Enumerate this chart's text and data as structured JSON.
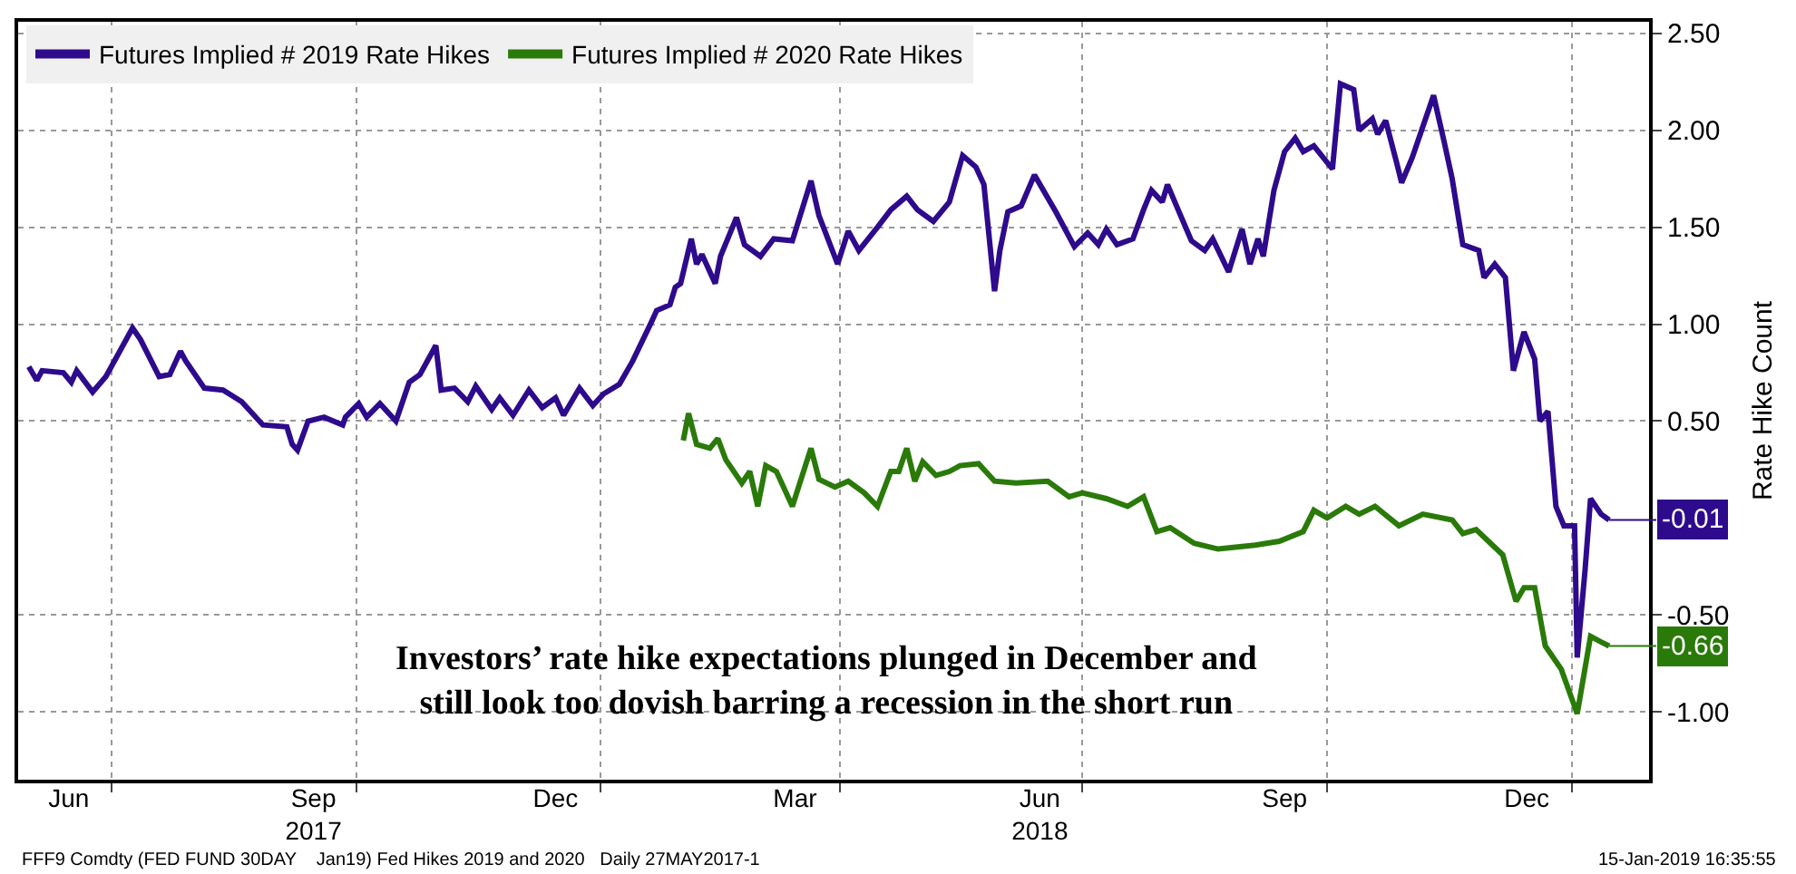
{
  "chart_data": {
    "type": "line",
    "ylabel": "Rate Hike Count",
    "annotations": [
      "Investors’ rate hike expectations plunged in December and\nstill look too dovish barring a recession in the short run",
      "FFF9 Comdty (FED FUND 30DAY    Jan19) Fed Hikes 2019 and 2020   Daily 27MAY2017-1",
      "15-Jan-2019 16:35:55",
      {
        "text": "-0.01",
        "x": "2019-01-15",
        "y": -0.01
      },
      {
        "text": "-0.66",
        "x": "2019-01-15",
        "y": -0.66
      }
    ],
    "series": [
      {
        "name": "Futures Implied # 2019 Rate Hikes",
        "color": "#2e0a8c",
        "x": [
          "2017-05-31",
          "2017-06-03",
          "2017-06-05",
          "2017-06-13",
          "2017-06-16",
          "2017-06-18",
          "2017-06-24",
          "2017-06-29",
          "2017-07-09",
          "2017-07-12",
          "2017-07-19",
          "2017-07-23",
          "2017-07-27",
          "2017-07-29",
          "2017-08-05",
          "2017-08-12",
          "2017-08-19",
          "2017-08-27",
          "2017-09-05",
          "2017-09-07",
          "2017-09-09",
          "2017-09-13",
          "2017-09-19",
          "2017-09-26",
          "2017-09-27",
          "2017-10-02",
          "2017-10-05",
          "2017-10-10",
          "2017-10-16",
          "2017-10-21",
          "2017-10-25",
          "2017-10-31",
          "2017-11-02",
          "2017-11-07",
          "2017-11-12",
          "2017-11-15",
          "2017-11-21",
          "2017-11-24",
          "2017-11-29",
          "2017-12-05",
          "2017-12-10",
          "2017-12-15",
          "2017-12-18",
          "2017-12-24",
          "2017-12-29",
          "2018-01-02",
          "2018-01-08",
          "2018-01-13",
          "2018-01-20",
          "2018-01-22",
          "2018-01-27",
          "2018-01-29",
          "2018-01-31",
          "2018-02-04",
          "2018-02-06",
          "2018-02-08",
          "2018-02-13",
          "2018-02-15",
          "2018-02-21",
          "2018-02-24",
          "2018-03-02",
          "2018-03-07",
          "2018-03-14",
          "2018-03-21",
          "2018-03-24",
          "2018-03-31",
          "2018-04-04",
          "2018-04-08",
          "2018-04-15",
          "2018-04-20",
          "2018-04-26",
          "2018-04-30",
          "2018-05-06",
          "2018-05-12",
          "2018-05-17",
          "2018-05-22",
          "2018-05-25",
          "2018-05-29",
          "2018-05-31",
          "2018-06-03",
          "2018-06-08",
          "2018-06-13",
          "2018-06-21",
          "2018-06-28",
          "2018-07-03",
          "2018-07-07",
          "2018-07-10",
          "2018-07-14",
          "2018-07-20",
          "2018-07-24",
          "2018-07-27",
          "2018-07-31",
          "2018-08-02",
          "2018-08-06",
          "2018-08-11",
          "2018-08-16",
          "2018-08-19",
          "2018-08-25",
          "2018-08-30",
          "2018-09-02",
          "2018-09-05",
          "2018-09-07",
          "2018-09-11",
          "2018-09-15",
          "2018-09-19",
          "2018-09-22",
          "2018-09-26",
          "2018-10-03",
          "2018-10-06",
          "2018-10-11",
          "2018-10-13",
          "2018-10-18",
          "2018-10-20",
          "2018-10-23",
          "2018-10-27",
          "2018-10-29",
          "2018-11-02",
          "2018-11-10",
          "2018-11-14",
          "2018-11-17",
          "2018-11-21",
          "2018-11-27",
          "2018-11-29",
          "2018-12-03",
          "2018-12-07",
          "2018-12-10",
          "2018-12-14",
          "2018-12-18",
          "2018-12-20",
          "2018-12-23",
          "2018-12-26",
          "2018-12-29",
          "2019-01-02",
          "2019-01-03",
          "2019-01-06",
          "2019-01-08",
          "2019-01-12",
          "2019-01-15"
        ],
        "values": [
          0.78,
          0.71,
          0.76,
          0.75,
          0.7,
          0.76,
          0.65,
          0.73,
          0.98,
          0.92,
          0.73,
          0.74,
          0.86,
          0.81,
          0.67,
          0.66,
          0.6,
          0.48,
          0.47,
          0.38,
          0.35,
          0.5,
          0.52,
          0.48,
          0.52,
          0.59,
          0.52,
          0.59,
          0.5,
          0.7,
          0.74,
          0.89,
          0.66,
          0.67,
          0.6,
          0.68,
          0.56,
          0.62,
          0.53,
          0.66,
          0.57,
          0.62,
          0.53,
          0.67,
          0.58,
          0.64,
          0.69,
          0.81,
          1.01,
          1.07,
          1.1,
          1.19,
          1.21,
          1.44,
          1.31,
          1.36,
          1.21,
          1.35,
          1.55,
          1.41,
          1.35,
          1.44,
          1.43,
          1.74,
          1.56,
          1.31,
          1.48,
          1.38,
          1.5,
          1.59,
          1.66,
          1.59,
          1.53,
          1.63,
          1.87,
          1.81,
          1.72,
          1.17,
          1.38,
          1.58,
          1.61,
          1.77,
          1.58,
          1.4,
          1.47,
          1.41,
          1.49,
          1.41,
          1.44,
          1.59,
          1.69,
          1.63,
          1.72,
          1.59,
          1.43,
          1.38,
          1.44,
          1.27,
          1.49,
          1.31,
          1.44,
          1.35,
          1.69,
          1.89,
          1.96,
          1.89,
          1.92,
          1.8,
          2.24,
          2.21,
          2.0,
          2.06,
          1.98,
          2.05,
          1.84,
          1.73,
          1.86,
          2.18,
          1.94,
          1.75,
          1.41,
          1.38,
          1.24,
          1.31,
          1.24,
          0.76,
          0.96,
          0.82,
          0.5,
          0.55,
          0.06,
          -0.04,
          -0.04,
          -0.72,
          -0.26,
          0.1,
          0.02,
          -0.01
        ]
      },
      {
        "name": "Futures Implied # 2020 Rate Hikes",
        "color": "#2a7a0a",
        "x": [
          "2018-02-01",
          "2018-02-03",
          "2018-02-06",
          "2018-02-11",
          "2018-02-14",
          "2018-02-17",
          "2018-02-23",
          "2018-02-26",
          "2018-03-01",
          "2018-03-04",
          "2018-03-08",
          "2018-03-14",
          "2018-03-21",
          "2018-03-24",
          "2018-03-30",
          "2018-04-04",
          "2018-04-10",
          "2018-04-15",
          "2018-04-20",
          "2018-04-23",
          "2018-04-26",
          "2018-04-29",
          "2018-05-02",
          "2018-05-07",
          "2018-05-12",
          "2018-05-16",
          "2018-05-23",
          "2018-05-29",
          "2018-06-06",
          "2018-06-18",
          "2018-06-26",
          "2018-07-01",
          "2018-07-10",
          "2018-07-18",
          "2018-07-24",
          "2018-07-29",
          "2018-08-03",
          "2018-08-12",
          "2018-08-21",
          "2018-09-04",
          "2018-09-13",
          "2018-09-22",
          "2018-09-26",
          "2018-10-01",
          "2018-10-08",
          "2018-10-13",
          "2018-10-19",
          "2018-10-28",
          "2018-11-06",
          "2018-11-17",
          "2018-11-21",
          "2018-11-26",
          "2018-12-06",
          "2018-12-11",
          "2018-12-14",
          "2018-12-18",
          "2018-12-22",
          "2018-12-28",
          "2019-01-03",
          "2019-01-08",
          "2019-01-12",
          "2019-01-15"
        ],
        "values": [
          0.4,
          0.54,
          0.38,
          0.36,
          0.41,
          0.3,
          0.18,
          0.24,
          0.06,
          0.27,
          0.24,
          0.06,
          0.36,
          0.2,
          0.16,
          0.19,
          0.13,
          0.06,
          0.24,
          0.24,
          0.36,
          0.19,
          0.29,
          0.22,
          0.24,
          0.27,
          0.28,
          0.19,
          0.18,
          0.19,
          0.11,
          0.13,
          0.1,
          0.06,
          0.11,
          -0.07,
          -0.05,
          -0.13,
          -0.16,
          -0.14,
          -0.12,
          -0.07,
          0.04,
          0.0,
          0.06,
          0.02,
          0.06,
          -0.04,
          0.02,
          -0.01,
          -0.08,
          -0.06,
          -0.19,
          -0.43,
          -0.36,
          -0.36,
          -0.66,
          -0.78,
          -1.01,
          -0.61,
          -0.64,
          -0.66
        ]
      }
    ],
    "xlim": [
      "2017-05-27",
      "2019-01-30"
    ],
    "xticks": [
      {
        "value": "2017-06-15",
        "label": "Jun"
      },
      {
        "value": "2017-09-15",
        "label": "Sep\n2017"
      },
      {
        "value": "2017-12-15",
        "label": "Dec"
      },
      {
        "value": "2018-03-15",
        "label": "Mar"
      },
      {
        "value": "2018-06-15",
        "label": "Jun\n2018"
      },
      {
        "value": "2018-09-15",
        "label": "Sep"
      },
      {
        "value": "2018-12-15",
        "label": "Dec"
      },
      {
        "value": "2017-07-01",
        "label": null
      },
      {
        "value": "2017-10-01",
        "label": null
      },
      {
        "value": "2018-01-01",
        "label": null
      },
      {
        "value": "2018-04-01",
        "label": null
      },
      {
        "value": "2018-07-01",
        "label": null
      },
      {
        "value": "2018-10-01",
        "label": null
      },
      {
        "value": "2019-01-01",
        "label": null
      }
    ],
    "ylim": [
      -1.35,
      2.56
    ],
    "yticks": [
      {
        "value": -1.0,
        "label": "-1.00"
      },
      {
        "value": -0.5,
        "label": "-0.50"
      },
      {
        "value": 0.5,
        "label": "0.50"
      },
      {
        "value": 1.0,
        "label": "1.00"
      },
      {
        "value": 1.5,
        "label": "1.50"
      },
      {
        "value": 2.0,
        "label": "2.00"
      },
      {
        "value": 2.5,
        "label": "2.50"
      }
    ],
    "grid": true,
    "legend": "top left",
    "marker": "none",
    "line_style": "solid"
  }
}
